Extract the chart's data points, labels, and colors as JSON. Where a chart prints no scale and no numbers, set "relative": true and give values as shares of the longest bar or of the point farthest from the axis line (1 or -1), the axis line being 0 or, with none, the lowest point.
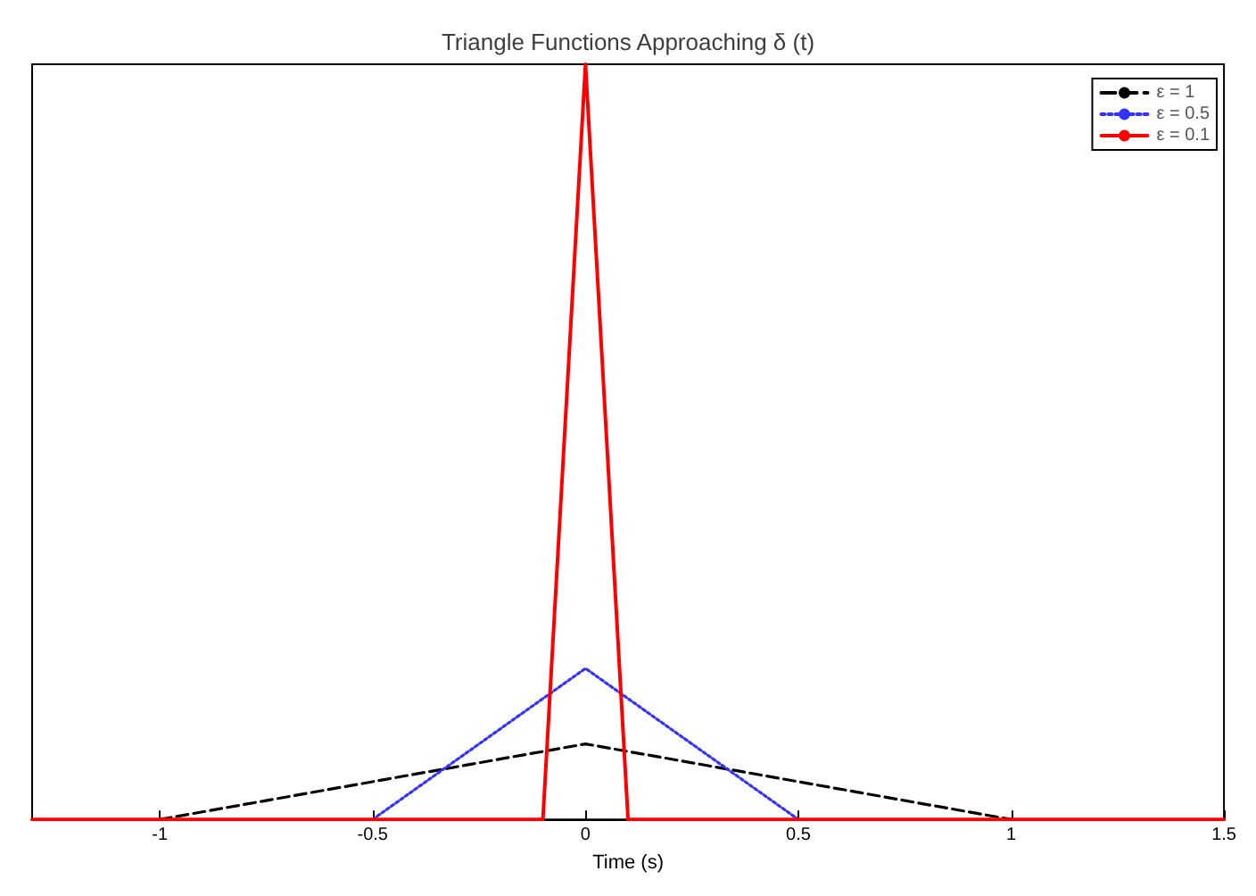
{
  "chart_data": {
    "type": "line",
    "title": "Triangle Functions Approaching δ (t)",
    "xlabel": "Time (s)",
    "relative": true,
    "xlim": [
      -1.3,
      1.5
    ],
    "xticks": [
      -1,
      -0.5,
      0,
      0.5,
      1,
      1.5
    ],
    "legend": "top right",
    "grid": false,
    "marker": "none",
    "series": [
      {
        "name": "ε = 1",
        "color": "#000000",
        "line_style": "dashed",
        "x": [
          -1,
          0,
          1
        ],
        "values": [
          0,
          0.1,
          0
        ]
      },
      {
        "name": "ε = 0.5",
        "color": "#3333ff",
        "line_style": "dotted",
        "x": [
          -0.5,
          0,
          0.5
        ],
        "values": [
          0,
          0.2,
          0
        ]
      },
      {
        "name": "ε = 0.1",
        "color": "#ff0000",
        "line_style": "solid",
        "x": [
          -1.3,
          -0.1,
          0,
          0.1,
          1.5
        ],
        "values": [
          0,
          0,
          1,
          0,
          0
        ]
      }
    ]
  }
}
